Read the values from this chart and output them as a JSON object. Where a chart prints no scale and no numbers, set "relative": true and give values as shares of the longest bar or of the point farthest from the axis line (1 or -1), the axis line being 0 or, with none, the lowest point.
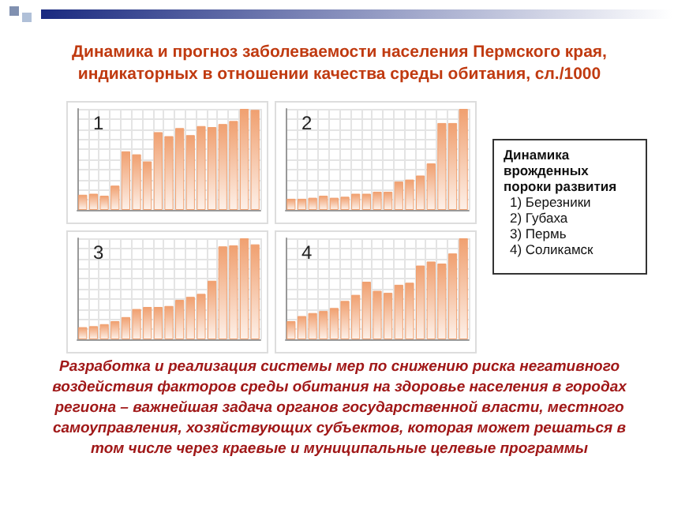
{
  "chart_data": [
    {
      "type": "bar",
      "title": "Динамика и прогноз заболеваемости населения  Пермского края, индикаторных в отношении качества среды обитания, сл./1000",
      "annotations": [
        "1",
        "Разработка и реализация системы мер по снижению риска негативного воздействия факторов  среды обитания на здоровье населения в городах региона – важнейшая задача органов государственной власти, местного самоуправления, хозяйствующих субъектов, которая может решаться в том числе через краевые и муниципальные целевые программы"
      ],
      "relative": true,
      "grid": true,
      "color": "#f0a070",
      "categories": [
        null,
        null,
        null,
        null,
        null,
        null,
        null,
        null,
        null,
        null,
        null,
        null,
        null,
        null,
        null,
        null,
        null
      ],
      "values": [
        0.15,
        0.16,
        0.14,
        0.24,
        0.58,
        0.55,
        0.48,
        0.77,
        0.73,
        0.81,
        0.74,
        0.83,
        0.82,
        0.85,
        0.88,
        1,
        0.99
      ]
    },
    {
      "type": "bar",
      "annotations": [
        "2"
      ],
      "relative": true,
      "grid": true,
      "color": "#f0a070",
      "categories": [
        null,
        null,
        null,
        null,
        null,
        null,
        null,
        null,
        null,
        null,
        null,
        null,
        null,
        null,
        null,
        null,
        null
      ],
      "values": [
        0.11,
        0.11,
        0.12,
        0.14,
        0.12,
        0.13,
        0.16,
        0.16,
        0.18,
        0.18,
        0.28,
        0.3,
        0.34,
        0.46,
        0.86,
        0.86,
        1
      ]
    },
    {
      "type": "bar",
      "annotations": [
        "3"
      ],
      "relative": true,
      "grid": true,
      "color": "#f0a070",
      "categories": [
        null,
        null,
        null,
        null,
        null,
        null,
        null,
        null,
        null,
        null,
        null,
        null,
        null,
        null,
        null,
        null,
        null
      ],
      "values": [
        0.12,
        0.13,
        0.15,
        0.18,
        0.22,
        0.3,
        0.32,
        0.32,
        0.33,
        0.39,
        0.42,
        0.45,
        0.58,
        0.92,
        0.93,
        1,
        0.94
      ]
    },
    {
      "type": "bar",
      "annotations": [
        "4"
      ],
      "relative": true,
      "grid": true,
      "color": "#f0a070",
      "categories": [
        null,
        null,
        null,
        null,
        null,
        null,
        null,
        null,
        null,
        null,
        null,
        null,
        null,
        null,
        null,
        null,
        null
      ],
      "values": [
        0.18,
        0.23,
        0.26,
        0.28,
        0.31,
        0.38,
        0.44,
        0.57,
        0.48,
        0.46,
        0.54,
        0.56,
        0.73,
        0.77,
        0.75,
        0.85,
        1
      ]
    },
    {
      "type": "other",
      "title": "Динамика врожденных пороки развития",
      "annotations": [
        "1)  Березники",
        "2)  Губаха",
        "3)  Пермь",
        "4)  Соликамск"
      ]
    }
  ]
}
